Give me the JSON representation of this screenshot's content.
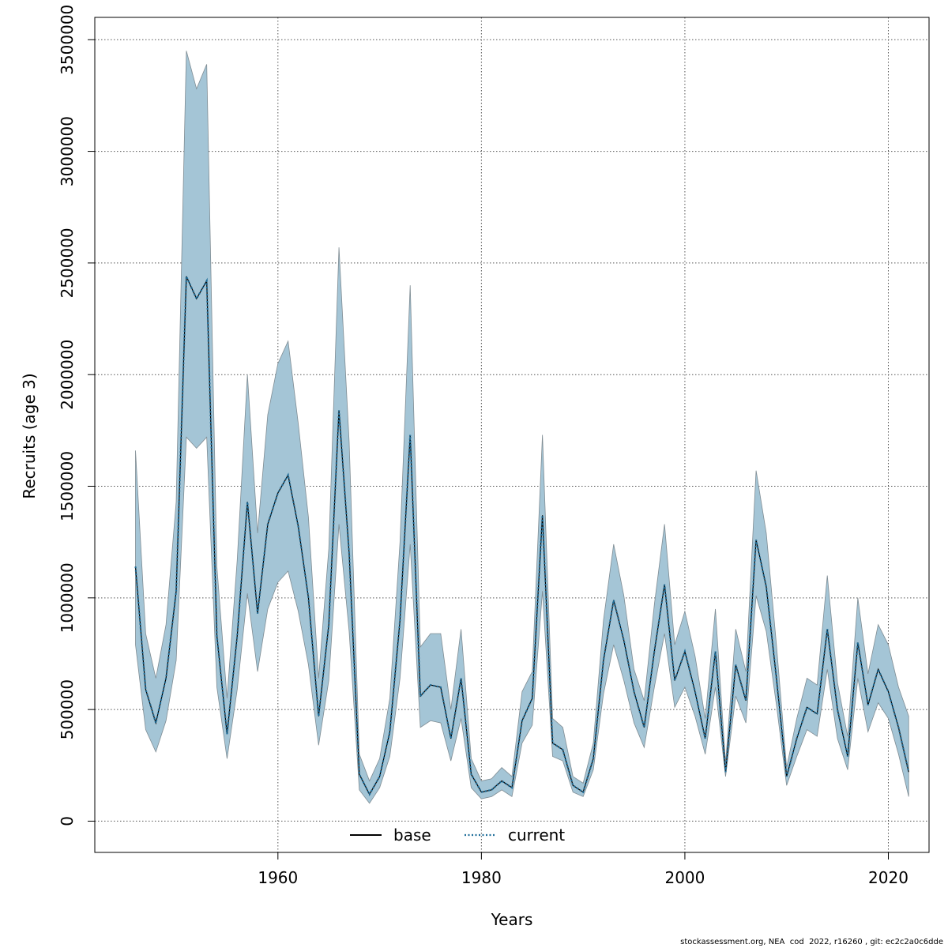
{
  "chart_data": {
    "type": "line",
    "xlabel": "Years",
    "ylabel": "Recruits (age 3)",
    "xlim": [
      1942,
      2024
    ],
    "ylim": [
      -140000,
      3600000
    ],
    "x_ticks": [
      1960,
      1980,
      2000,
      2020
    ],
    "x_tick_labels": [
      "1960",
      "1980",
      "2000",
      "2020"
    ],
    "y_ticks": [
      0,
      500000,
      1000000,
      1500000,
      2000000,
      2500000,
      3000000,
      3500000
    ],
    "y_tick_labels": [
      "0",
      "500000",
      "1000000",
      "1500000",
      "2000000",
      "2500000",
      "3000000",
      "3500000"
    ],
    "grid": true,
    "legend_position": "bottom-center",
    "legend": [
      {
        "label": "base",
        "style": "solid",
        "color": "#000000"
      },
      {
        "label": "current",
        "style": "dotted",
        "color": "#1f6e9a"
      }
    ],
    "colors": {
      "band": "#a4c5d6",
      "band_edge": "#7f8c93",
      "current": "#1f6e9a",
      "base": "#000000",
      "grid": "#555555"
    },
    "x": [
      1946,
      1947,
      1948,
      1949,
      1950,
      1951,
      1952,
      1953,
      1954,
      1955,
      1956,
      1957,
      1958,
      1959,
      1960,
      1961,
      1962,
      1963,
      1964,
      1965,
      1966,
      1967,
      1968,
      1969,
      1970,
      1971,
      1972,
      1973,
      1974,
      1975,
      1976,
      1977,
      1978,
      1979,
      1980,
      1981,
      1982,
      1983,
      1984,
      1985,
      1986,
      1987,
      1988,
      1989,
      1990,
      1991,
      1992,
      1993,
      1994,
      1995,
      1996,
      1997,
      1998,
      1999,
      2000,
      2001,
      2002,
      2003,
      2004,
      2005,
      2006,
      2007,
      2008,
      2009,
      2010,
      2011,
      2012,
      2013,
      2014,
      2015,
      2016,
      2017,
      2018,
      2019,
      2020,
      2021,
      2022
    ],
    "series": [
      {
        "name": "base",
        "values": [
          1140000,
          590000,
          440000,
          640000,
          1030000,
          2440000,
          2340000,
          2420000,
          830000,
          390000,
          830000,
          1430000,
          930000,
          1330000,
          1470000,
          1550000,
          1320000,
          1000000,
          470000,
          880000,
          1840000,
          1200000,
          210000,
          120000,
          200000,
          400000,
          900000,
          1730000,
          560000,
          610000,
          600000,
          370000,
          640000,
          210000,
          130000,
          140000,
          180000,
          150000,
          450000,
          550000,
          1370000,
          350000,
          320000,
          160000,
          130000,
          280000,
          720000,
          990000,
          810000,
          580000,
          420000,
          760000,
          1060000,
          630000,
          760000,
          580000,
          370000,
          760000,
          220000,
          700000,
          540000,
          1260000,
          1050000,
          640000,
          200000,
          370000,
          510000,
          480000,
          860000,
          500000,
          290000,
          800000,
          520000,
          680000,
          580000,
          420000,
          220000
        ]
      },
      {
        "name": "current",
        "values": [
          1140000,
          590000,
          440000,
          640000,
          1030000,
          2440000,
          2340000,
          2420000,
          830000,
          390000,
          830000,
          1430000,
          930000,
          1330000,
          1470000,
          1550000,
          1320000,
          1000000,
          470000,
          880000,
          1840000,
          1200000,
          210000,
          120000,
          200000,
          400000,
          900000,
          1730000,
          560000,
          610000,
          600000,
          370000,
          640000,
          210000,
          130000,
          140000,
          180000,
          150000,
          450000,
          550000,
          1370000,
          350000,
          320000,
          160000,
          130000,
          280000,
          720000,
          990000,
          810000,
          580000,
          420000,
          760000,
          1060000,
          630000,
          760000,
          580000,
          370000,
          760000,
          220000,
          700000,
          540000,
          1260000,
          1050000,
          640000,
          200000,
          370000,
          510000,
          480000,
          860000,
          500000,
          290000,
          800000,
          520000,
          680000,
          580000,
          420000,
          220000
        ]
      }
    ],
    "band_lower": [
      790000,
      410000,
      310000,
      450000,
      720000,
      1720000,
      1670000,
      1720000,
      600000,
      280000,
      590000,
      1020000,
      670000,
      950000,
      1070000,
      1120000,
      940000,
      700000,
      340000,
      630000,
      1330000,
      850000,
      140000,
      80000,
      150000,
      290000,
      640000,
      1240000,
      420000,
      450000,
      440000,
      270000,
      460000,
      150000,
      100000,
      110000,
      140000,
      110000,
      350000,
      430000,
      1030000,
      290000,
      270000,
      130000,
      110000,
      230000,
      570000,
      790000,
      630000,
      440000,
      330000,
      600000,
      840000,
      510000,
      600000,
      470000,
      300000,
      600000,
      200000,
      560000,
      440000,
      1010000,
      850000,
      520000,
      160000,
      290000,
      410000,
      380000,
      680000,
      370000,
      230000,
      640000,
      400000,
      530000,
      460000,
      300000,
      110000
    ],
    "band_upper": [
      1660000,
      840000,
      640000,
      880000,
      1430000,
      3450000,
      3280000,
      3390000,
      1140000,
      550000,
      1170000,
      2000000,
      1290000,
      1820000,
      2050000,
      2150000,
      1780000,
      1360000,
      640000,
      1220000,
      2570000,
      1700000,
      300000,
      180000,
      280000,
      550000,
      1250000,
      2400000,
      780000,
      840000,
      840000,
      500000,
      860000,
      280000,
      180000,
      190000,
      240000,
      200000,
      580000,
      670000,
      1730000,
      460000,
      420000,
      200000,
      170000,
      350000,
      900000,
      1240000,
      1010000,
      680000,
      540000,
      970000,
      1330000,
      790000,
      940000,
      740000,
      460000,
      950000,
      260000,
      860000,
      670000,
      1570000,
      1290000,
      790000,
      240000,
      460000,
      640000,
      610000,
      1100000,
      620000,
      380000,
      1000000,
      660000,
      880000,
      790000,
      600000,
      470000
    ]
  },
  "footer": "stockassessment.org, NEA  cod  2022, r16260 , git: ec2c2a0c6dde"
}
